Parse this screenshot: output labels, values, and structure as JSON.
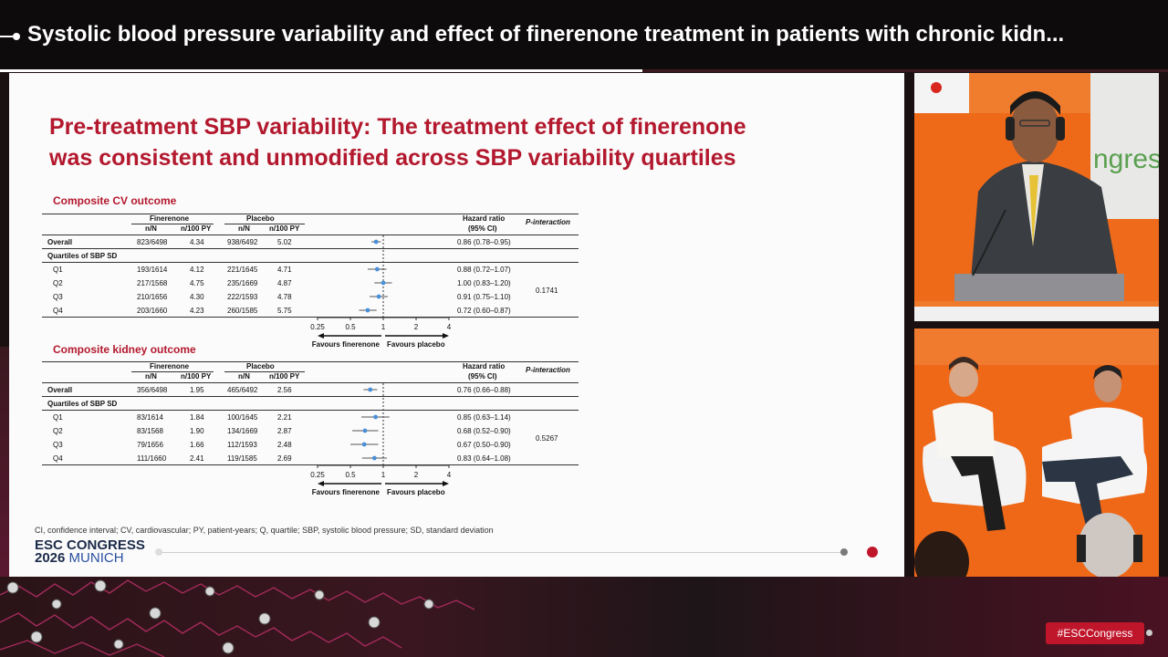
{
  "broadcast": {
    "title": "Systolic blood pressure variability and effect of finerenone treatment in patients with chronic kidn...",
    "hashtag": "#ESCCongress"
  },
  "slide": {
    "title_line1": "Pre-treatment SBP variability: The treatment effect of finerenone",
    "title_line2": "was consistent and unmodified across SBP variability quartiles",
    "footnote": "CI, confidence interval; CV, cardiovascular; PY, patient-years; Q, quartile; SBP, systolic blood pressure; SD, standard deviation",
    "logo_line1": "ESC CONGRESS",
    "logo_year": "2026",
    "logo_city": "MUNICH",
    "accent_color": "#b3192e",
    "marker_color": "#4a90d9"
  },
  "tables": [
    {
      "section_title": "Composite CV outcome",
      "header": {
        "group1": "Finerenone",
        "group2": "Placebo",
        "n_col": "n/N",
        "rate_col": "n/100 PY",
        "hr_line1": "Hazard ratio",
        "hr_line2": "(95% CI)",
        "pint": "P-interaction"
      },
      "overall": {
        "label": "Overall",
        "fin_n": "823/6498",
        "fin_rate": "4.34",
        "pla_n": "938/6492",
        "pla_rate": "5.02",
        "hr_text": "0.86 (0.78–0.95)",
        "hr": 0.86,
        "lo": 0.78,
        "hi": 0.95
      },
      "subgroup_label": "Quartiles of SBP SD",
      "p_interaction": "0.1741",
      "rows": [
        {
          "label": "Q1",
          "fin_n": "193/1614",
          "fin_rate": "4.12",
          "pla_n": "221/1645",
          "pla_rate": "4.71",
          "hr_text": "0.88 (0.72–1.07)",
          "hr": 0.88,
          "lo": 0.72,
          "hi": 1.07
        },
        {
          "label": "Q2",
          "fin_n": "217/1568",
          "fin_rate": "4.75",
          "pla_n": "235/1669",
          "pla_rate": "4.87",
          "hr_text": "1.00 (0.83–1.20)",
          "hr": 1.0,
          "lo": 0.83,
          "hi": 1.2
        },
        {
          "label": "Q3",
          "fin_n": "210/1656",
          "fin_rate": "4.30",
          "pla_n": "222/1593",
          "pla_rate": "4.78",
          "hr_text": "0.91 (0.75–1.10)",
          "hr": 0.91,
          "lo": 0.75,
          "hi": 1.1
        },
        {
          "label": "Q4",
          "fin_n": "203/1660",
          "fin_rate": "4.23",
          "pla_n": "260/1585",
          "pla_rate": "5.75",
          "hr_text": "0.72 (0.60–0.87)",
          "hr": 0.72,
          "lo": 0.6,
          "hi": 0.87
        }
      ],
      "axis_ticks": [
        "0.25",
        "0.5",
        "1",
        "2",
        "4"
      ],
      "favours_left": "Favours finerenone",
      "favours_right": "Favours placebo"
    },
    {
      "section_title": "Composite kidney outcome",
      "header": {
        "group1": "Finerenone",
        "group2": "Placebo",
        "n_col": "n/N",
        "rate_col": "n/100 PY",
        "hr_line1": "Hazard ratio",
        "hr_line2": "(95% CI)",
        "pint": "P-interaction"
      },
      "overall": {
        "label": "Overall",
        "fin_n": "356/6498",
        "fin_rate": "1.95",
        "pla_n": "465/6492",
        "pla_rate": "2.56",
        "hr_text": "0.76 (0.66–0.88)",
        "hr": 0.76,
        "lo": 0.66,
        "hi": 0.88
      },
      "subgroup_label": "Quartiles of SBP SD",
      "p_interaction": "0.5267",
      "rows": [
        {
          "label": "Q1",
          "fin_n": "83/1614",
          "fin_rate": "1.84",
          "pla_n": "100/1645",
          "pla_rate": "2.21",
          "hr_text": "0.85 (0.63–1.14)",
          "hr": 0.85,
          "lo": 0.63,
          "hi": 1.14
        },
        {
          "label": "Q2",
          "fin_n": "83/1568",
          "fin_rate": "1.90",
          "pla_n": "134/1669",
          "pla_rate": "2.87",
          "hr_text": "0.68 (0.52–0.90)",
          "hr": 0.68,
          "lo": 0.52,
          "hi": 0.9
        },
        {
          "label": "Q3",
          "fin_n": "79/1656",
          "fin_rate": "1.66",
          "pla_n": "112/1593",
          "pla_rate": "2.48",
          "hr_text": "0.67 (0.50–0.90)",
          "hr": 0.67,
          "lo": 0.5,
          "hi": 0.9
        },
        {
          "label": "Q4",
          "fin_n": "111/1660",
          "fin_rate": "2.41",
          "pla_n": "119/1585",
          "pla_rate": "2.69",
          "hr_text": "0.83 (0.64–1.08)",
          "hr": 0.83,
          "lo": 0.64,
          "hi": 1.08
        }
      ],
      "axis_ticks": [
        "0.25",
        "0.5",
        "1",
        "2",
        "4"
      ],
      "favours_left": "Favours finerenone",
      "favours_right": "Favours placebo"
    }
  ],
  "chart_data": [
    {
      "type": "forest",
      "title": "Composite CV outcome",
      "scale": "log",
      "xlim": [
        0.25,
        4
      ],
      "reference_line": 1,
      "categories": [
        "Overall",
        "Q1",
        "Q2",
        "Q3",
        "Q4"
      ],
      "values": [
        0.86,
        0.88,
        1.0,
        0.91,
        0.72
      ],
      "ci_low": [
        0.78,
        0.72,
        0.83,
        0.75,
        0.6
      ],
      "ci_high": [
        0.95,
        1.07,
        1.2,
        1.1,
        0.87
      ]
    },
    {
      "type": "forest",
      "title": "Composite kidney outcome",
      "scale": "log",
      "xlim": [
        0.25,
        4
      ],
      "reference_line": 1,
      "categories": [
        "Overall",
        "Q1",
        "Q2",
        "Q3",
        "Q4"
      ],
      "values": [
        0.76,
        0.85,
        0.68,
        0.67,
        0.83
      ],
      "ci_low": [
        0.66,
        0.63,
        0.52,
        0.5,
        0.64
      ],
      "ci_high": [
        0.88,
        1.14,
        0.9,
        0.9,
        1.08
      ]
    }
  ],
  "camera_top": {
    "backdrop_text": "ngres"
  }
}
